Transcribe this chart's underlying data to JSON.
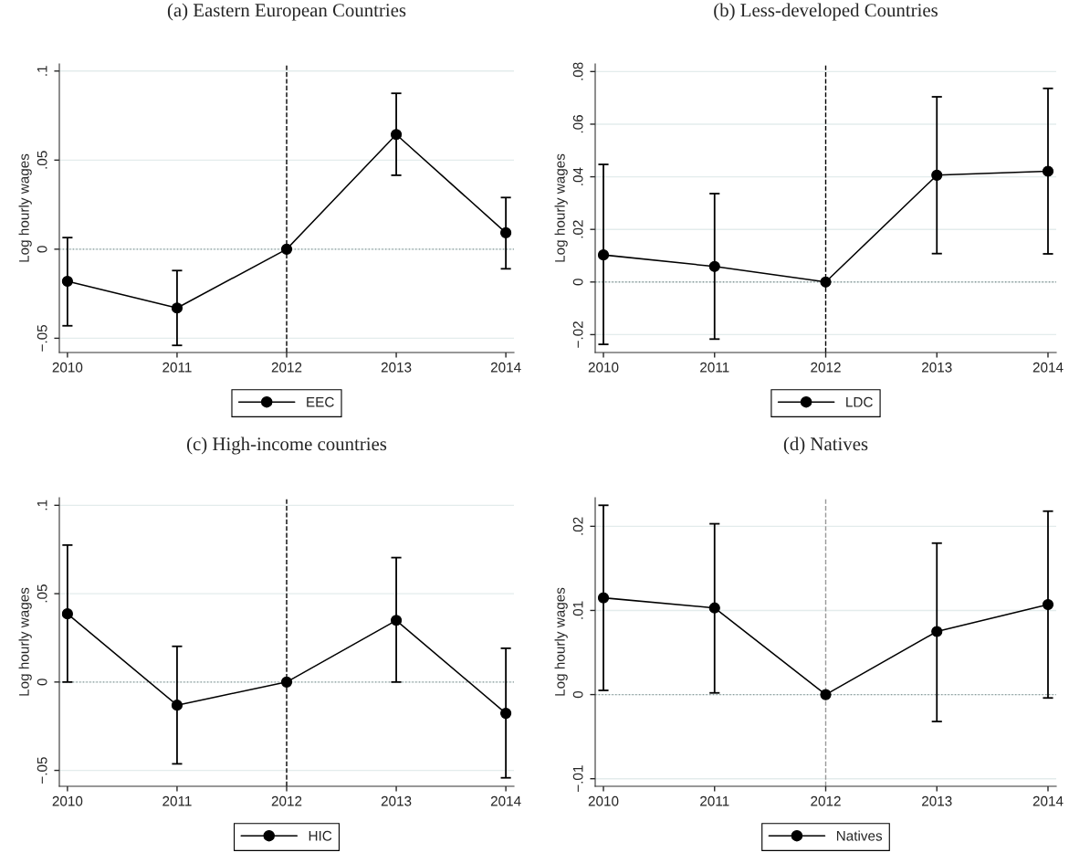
{
  "chart_data": [
    {
      "type": "line",
      "title": "(a) Eastern European Countries",
      "ylabel": "Log hourly wages",
      "x": [
        2010,
        2011,
        2012,
        2013,
        2014
      ],
      "xlim": [
        2009.926,
        2014.074
      ],
      "xticks": [
        2010,
        2011,
        2012,
        2013,
        2014
      ],
      "ylim": [
        -0.058,
        0.104
      ],
      "yticks": [
        {
          "value": -0.05,
          "label": "−.05"
        },
        {
          "value": 0,
          "label": "0"
        },
        {
          "value": 0.05,
          "label": ".05"
        },
        {
          "value": 0.1,
          "label": ".1"
        }
      ],
      "grid": "y",
      "legend": "bottom",
      "marker": "circle",
      "line_style": "solid",
      "series": [
        {
          "name": "EEC",
          "color": "#000000",
          "values": [
            -0.018,
            -0.033,
            0,
            0.0644,
            0.0092
          ],
          "errors": [
            [
              -0.043,
              0.0065
            ],
            [
              -0.054,
              -0.012
            ],
            null,
            [
              0.0415,
              0.0875
            ],
            [
              -0.011,
              0.029
            ]
          ]
        }
      ],
      "ref_lines": [
        {
          "axis": "y",
          "value": 0,
          "color": "#8a9a9a",
          "line_style": "dotted"
        },
        {
          "axis": "x",
          "value": 2012,
          "color": "#000000",
          "line_style": "dashed"
        }
      ]
    },
    {
      "type": "line",
      "title": "(b) Less-developed Countries",
      "ylabel": "Log hourly wages",
      "x": [
        2010,
        2011,
        2012,
        2013,
        2014
      ],
      "xlim": [
        2009.926,
        2014.074
      ],
      "xticks": [
        2010,
        2011,
        2012,
        2013,
        2014
      ],
      "ylim": [
        -0.0268,
        0.0829
      ],
      "yticks": [
        {
          "value": -0.02,
          "label": "−.02"
        },
        {
          "value": 0,
          "label": "0"
        },
        {
          "value": 0.02,
          "label": ".02"
        },
        {
          "value": 0.04,
          "label": ".04"
        },
        {
          "value": 0.06,
          "label": ".06"
        },
        {
          "value": 0.08,
          "label": ".08"
        }
      ],
      "grid": "y",
      "legend": "bottom",
      "marker": "circle",
      "line_style": "solid",
      "series": [
        {
          "name": "LDC",
          "color": "#000000",
          "values": [
            0.0103,
            0.0059,
            0,
            0.0406,
            0.0421
          ],
          "errors": [
            [
              -0.0237,
              0.0447
            ],
            [
              -0.0217,
              0.0336
            ],
            null,
            [
              0.0108,
              0.0704
            ],
            [
              0.0107,
              0.0736
            ]
          ]
        }
      ],
      "ref_lines": [
        {
          "axis": "y",
          "value": 0,
          "color": "#8a9a9a",
          "line_style": "dotted"
        },
        {
          "axis": "x",
          "value": 2012,
          "color": "#000000",
          "line_style": "dashed"
        }
      ]
    },
    {
      "type": "line",
      "title": "(c) High-income countries",
      "ylabel": "Log hourly wages",
      "x": [
        2010,
        2011,
        2012,
        2013,
        2014
      ],
      "xlim": [
        2009.926,
        2014.074
      ],
      "xticks": [
        2010,
        2011,
        2012,
        2013,
        2014
      ],
      "ylim": [
        -0.059,
        0.1043
      ],
      "yticks": [
        {
          "value": -0.05,
          "label": "−.05"
        },
        {
          "value": 0,
          "label": "0"
        },
        {
          "value": 0.05,
          "label": ".05"
        },
        {
          "value": 0.1,
          "label": ".1"
        }
      ],
      "grid": "y",
      "legend": "bottom",
      "marker": "circle",
      "line_style": "solid",
      "series": [
        {
          "name": "HIC",
          "color": "#000000",
          "values": [
            0.0386,
            -0.0131,
            0,
            0.0349,
            -0.0177
          ],
          "errors": [
            [
              0,
              0.0775
            ],
            [
              -0.0463,
              0.0202
            ],
            null,
            [
              0,
              0.0704
            ],
            [
              -0.0542,
              0.0191
            ]
          ]
        }
      ],
      "ref_lines": [
        {
          "axis": "y",
          "value": 0,
          "color": "#8a9a9a",
          "line_style": "dotted"
        },
        {
          "axis": "x",
          "value": 2012,
          "color": "#000000",
          "line_style": "dashed"
        }
      ]
    },
    {
      "type": "line",
      "title": "(d) Natives",
      "ylabel": "Log hourly wages",
      "x": [
        2010,
        2011,
        2012,
        2013,
        2014
      ],
      "xlim": [
        2009.926,
        2014.074
      ],
      "xticks": [
        2010,
        2011,
        2012,
        2013,
        2014
      ],
      "ylim": [
        -0.0109,
        0.0234
      ],
      "yticks": [
        {
          "value": -0.01,
          "label": "−.01"
        },
        {
          "value": 0,
          "label": "0"
        },
        {
          "value": 0.01,
          "label": ".01"
        },
        {
          "value": 0.02,
          "label": ".02"
        }
      ],
      "grid": "y",
      "legend": "bottom",
      "marker": "circle",
      "line_style": "solid",
      "series": [
        {
          "name": "Natives",
          "color": "#000000",
          "values": [
            0.0115,
            0.0103,
            0,
            0.0075,
            0.0107
          ],
          "errors": [
            [
              0.0005,
              0.0225
            ],
            [
              0.0002,
              0.0203
            ],
            null,
            [
              -0.0032,
              0.018
            ],
            [
              -0.0004,
              0.0218
            ]
          ]
        }
      ],
      "ref_lines": [
        {
          "axis": "y",
          "value": 0,
          "color": "#8a9a9a",
          "line_style": "dotted"
        },
        {
          "axis": "x",
          "value": 2012,
          "color": "#999999",
          "line_style": "dashed"
        }
      ]
    }
  ]
}
